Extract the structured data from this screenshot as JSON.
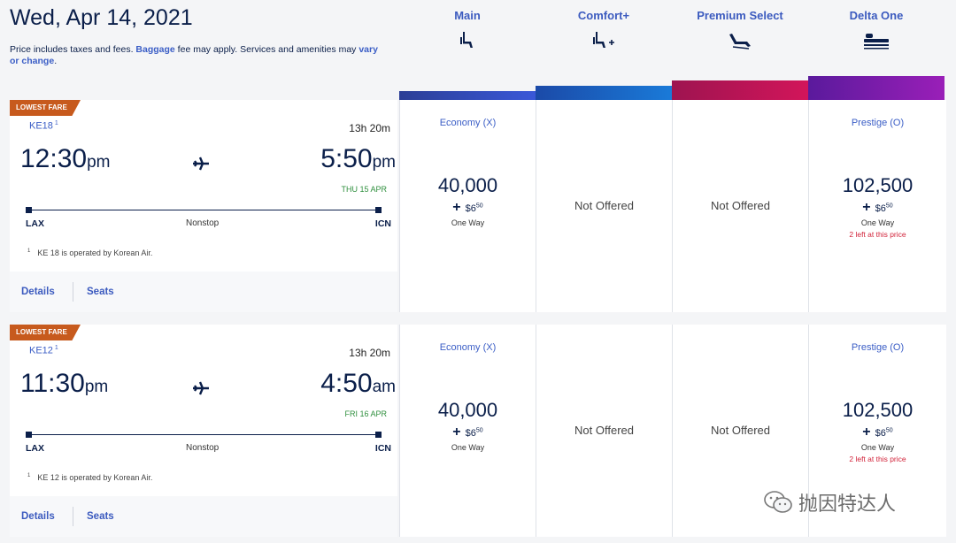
{
  "header": {
    "date": "Wed, Apr 14, 2021",
    "note_prefix": "Price includes taxes and fees. ",
    "note_link1": "Baggage",
    "note_mid": " fee may apply. Services and amenities may ",
    "note_link2": "vary or change",
    "note_suffix": "."
  },
  "cabins": [
    {
      "name": "Main",
      "icon": "seat-icon",
      "color": "#2b3e96"
    },
    {
      "name": "Comfort+",
      "icon": "seat-plus-icon",
      "color": "#1a6fd0"
    },
    {
      "name": "Premium Select",
      "icon": "recliner-icon",
      "color": "#b0174f"
    },
    {
      "name": "Delta One",
      "icon": "flat-bed-icon",
      "color": "#7b1fa2"
    }
  ],
  "flights": [
    {
      "tag": "LOWEST FARE",
      "flight_no": "KE18",
      "footnote_mark": "1",
      "duration": "13h 20m",
      "dep_time": "12:30",
      "dep_ampm": "pm",
      "arr_time": "5:50",
      "arr_ampm": "pm",
      "arr_date": "THU 15 APR",
      "from": "LAX",
      "to": "ICN",
      "stops": "Nonstop",
      "footnote": "KE 18 is operated by Korean Air.",
      "details": "Details",
      "seats": "Seats",
      "fares": [
        {
          "cls": "Economy (X)",
          "miles": "40,000",
          "tax_dollars": "$6",
          "tax_cents": "50",
          "way": "One Way",
          "left": ""
        },
        {
          "na": "Not Offered"
        },
        {
          "na": "Not Offered"
        },
        {
          "cls": "Prestige (O)",
          "miles": "102,500",
          "tax_dollars": "$6",
          "tax_cents": "50",
          "way": "One Way",
          "left": "2 left at this price"
        }
      ]
    },
    {
      "tag": "LOWEST FARE",
      "flight_no": "KE12",
      "footnote_mark": "1",
      "duration": "13h 20m",
      "dep_time": "11:30",
      "dep_ampm": "pm",
      "arr_time": "4:50",
      "arr_ampm": "am",
      "arr_date": "FRI 16 APR",
      "from": "LAX",
      "to": "ICN",
      "stops": "Nonstop",
      "footnote": "KE 12 is operated by Korean Air.",
      "details": "Details",
      "seats": "Seats",
      "fares": [
        {
          "cls": "Economy (X)",
          "miles": "40,000",
          "tax_dollars": "$6",
          "tax_cents": "50",
          "way": "One Way",
          "left": ""
        },
        {
          "na": "Not Offered"
        },
        {
          "na": "Not Offered"
        },
        {
          "cls": "Prestige (O)",
          "miles": "102,500",
          "tax_dollars": "$6",
          "tax_cents": "50",
          "way": "One Way",
          "left": "2 left at this price"
        }
      ]
    }
  ],
  "watermark": "抛因特达人"
}
